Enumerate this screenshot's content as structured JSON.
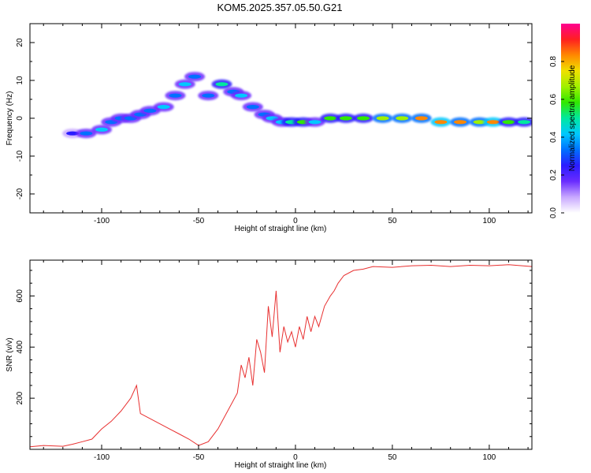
{
  "title": "KOM5.2025.357.05.50.G21",
  "chart_data": [
    {
      "type": "heatmap",
      "name": "spectrogram",
      "xlabel": "Height of straight line (km)",
      "ylabel": "Frequency (Hz)",
      "xlim": [
        -137,
        122
      ],
      "ylim": [
        -25,
        25
      ],
      "xticks": [
        -100,
        -50,
        0,
        50,
        100
      ],
      "yticks": [
        -20,
        -10,
        0,
        10,
        20
      ],
      "colorbar": {
        "label": "Normalized spectral amplitude",
        "range": [
          0,
          1
        ],
        "ticks": [
          0.0,
          0.2,
          0.4,
          0.6,
          0.8
        ],
        "colors": [
          "#ffffff",
          "#c8a8ff",
          "#6a2cff",
          "#2a1cff",
          "#0070ff",
          "#00c8ff",
          "#00e8a0",
          "#30e800",
          "#a0f000",
          "#f0e000",
          "#ff8800",
          "#ff2020",
          "#ff0090"
        ]
      },
      "blobs": [
        {
          "x": -115,
          "y": -4,
          "amp": 0.25
        },
        {
          "x": -108,
          "y": -4,
          "amp": 0.35
        },
        {
          "x": -100,
          "y": -3,
          "amp": 0.4
        },
        {
          "x": -95,
          "y": -1,
          "amp": 0.35
        },
        {
          "x": -90,
          "y": 0,
          "amp": 0.3
        },
        {
          "x": -85,
          "y": 0,
          "amp": 0.35
        },
        {
          "x": -80,
          "y": 1,
          "amp": 0.3
        },
        {
          "x": -75,
          "y": 2,
          "amp": 0.35
        },
        {
          "x": -68,
          "y": 3,
          "amp": 0.45
        },
        {
          "x": -62,
          "y": 6,
          "amp": 0.35
        },
        {
          "x": -57,
          "y": 9,
          "amp": 0.4
        },
        {
          "x": -52,
          "y": 11,
          "amp": 0.3
        },
        {
          "x": -45,
          "y": 6,
          "amp": 0.35
        },
        {
          "x": -38,
          "y": 9,
          "amp": 0.5
        },
        {
          "x": -32,
          "y": 7,
          "amp": 0.35
        },
        {
          "x": -28,
          "y": 6,
          "amp": 0.45
        },
        {
          "x": -22,
          "y": 3,
          "amp": 0.35
        },
        {
          "x": -16,
          "y": 1,
          "amp": 0.35
        },
        {
          "x": -12,
          "y": 0,
          "amp": 0.4
        },
        {
          "x": -7,
          "y": -1,
          "amp": 0.45
        },
        {
          "x": -2,
          "y": -1,
          "amp": 0.5
        },
        {
          "x": 4,
          "y": -1,
          "amp": 0.55
        },
        {
          "x": 10,
          "y": -1,
          "amp": 0.45
        },
        {
          "x": 18,
          "y": 0,
          "amp": 0.55
        },
        {
          "x": 26,
          "y": 0,
          "amp": 0.6
        },
        {
          "x": 35,
          "y": 0,
          "amp": 0.55
        },
        {
          "x": 45,
          "y": 0,
          "amp": 0.65
        },
        {
          "x": 55,
          "y": 0,
          "amp": 0.7
        },
        {
          "x": 65,
          "y": 0,
          "amp": 0.8
        },
        {
          "x": 75,
          "y": -1,
          "amp": 0.85
        },
        {
          "x": 85,
          "y": -1,
          "amp": 0.8
        },
        {
          "x": 95,
          "y": -1,
          "amp": 0.7
        },
        {
          "x": 102,
          "y": -1,
          "amp": 0.85
        },
        {
          "x": 110,
          "y": -1,
          "amp": 0.55
        },
        {
          "x": 118,
          "y": -1,
          "amp": 0.5
        }
      ]
    },
    {
      "type": "line",
      "name": "snr",
      "xlabel": "Height of straight line (km)",
      "ylabel": "SNR (v/v)",
      "xlim": [
        -137,
        122
      ],
      "ylim": [
        0,
        740
      ],
      "xticks": [
        -100,
        -50,
        0,
        50,
        100
      ],
      "yticks": [
        200,
        400,
        600
      ],
      "color": "#e83030",
      "x": [
        -137,
        -130,
        -120,
        -115,
        -110,
        -105,
        -100,
        -95,
        -90,
        -85,
        -82,
        -80,
        -75,
        -70,
        -65,
        -60,
        -55,
        -50,
        -45,
        -40,
        -35,
        -30,
        -28,
        -26,
        -24,
        -22,
        -20,
        -18,
        -16,
        -14,
        -12,
        -10,
        -8,
        -6,
        -4,
        -2,
        0,
        2,
        4,
        6,
        8,
        10,
        12,
        15,
        18,
        20,
        22,
        25,
        30,
        35,
        40,
        50,
        60,
        70,
        80,
        90,
        100,
        110,
        122
      ],
      "y": [
        10,
        15,
        12,
        20,
        30,
        40,
        80,
        110,
        150,
        200,
        250,
        140,
        120,
        100,
        80,
        60,
        40,
        15,
        30,
        80,
        150,
        220,
        330,
        280,
        360,
        250,
        430,
        380,
        300,
        560,
        440,
        620,
        380,
        480,
        420,
        460,
        400,
        480,
        430,
        520,
        460,
        520,
        480,
        560,
        600,
        620,
        650,
        680,
        700,
        705,
        715,
        712,
        718,
        720,
        715,
        720,
        718,
        722,
        715
      ]
    }
  ]
}
